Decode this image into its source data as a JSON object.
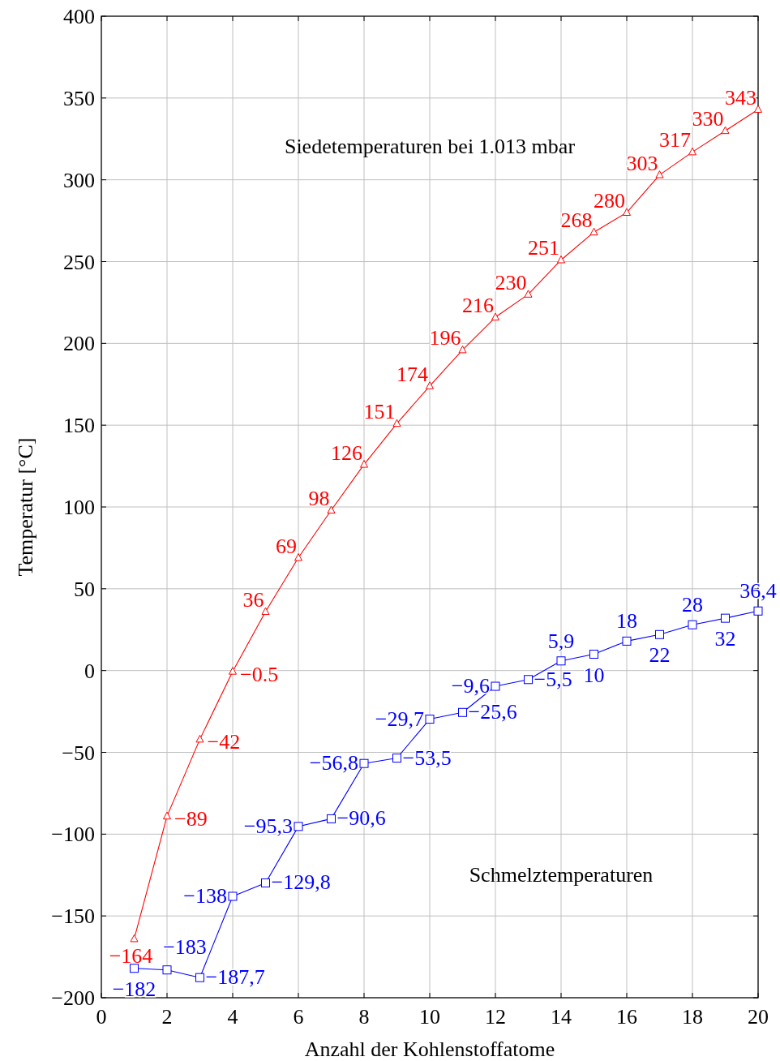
{
  "chart_data": {
    "type": "line",
    "xlabel": "Anzahl der Kohlenstoffatome",
    "ylabel": "Temperatur [°C]",
    "x": [
      1,
      2,
      3,
      4,
      5,
      6,
      7,
      8,
      9,
      10,
      11,
      12,
      13,
      14,
      15,
      16,
      17,
      18,
      19,
      20
    ],
    "xlim": [
      0,
      20
    ],
    "xticks": [
      0,
      2,
      4,
      6,
      8,
      10,
      12,
      14,
      16,
      18,
      20
    ],
    "ylim": [
      -200,
      400
    ],
    "yticks": [
      -200,
      -150,
      -100,
      -50,
      0,
      50,
      100,
      150,
      200,
      250,
      300,
      350,
      400
    ],
    "grid": true,
    "annotations": [
      "Siedetemperaturen bei 1.013 mbar",
      "Schmelztemperaturen"
    ],
    "series": [
      {
        "color": "#ff0000",
        "marker": "triangle",
        "values": [
          -164,
          -89,
          -42,
          -0.5,
          36,
          69,
          98,
          126,
          151,
          174,
          196,
          216,
          230,
          251,
          268,
          280,
          303,
          317,
          330,
          343
        ],
        "value_labels": [
          "−164",
          "−89",
          "−42",
          "−0.5",
          "36",
          "69",
          "98",
          "126",
          "151",
          "174",
          "196",
          "216",
          "230",
          "251",
          "268",
          "280",
          "303",
          "317",
          "330",
          "343"
        ]
      },
      {
        "color": "#0000ff",
        "marker": "square",
        "values": [
          -182,
          -183,
          -187.7,
          -138,
          -129.8,
          -95.3,
          -90.6,
          -56.8,
          -53.5,
          -29.7,
          -25.6,
          -9.6,
          -5.5,
          5.9,
          10,
          18,
          22,
          28,
          32,
          36.4
        ],
        "value_labels": [
          "−182",
          "−183",
          "−187,7",
          "−138",
          "−129,8",
          "−95,3",
          "−90,6",
          "−56,8",
          "−53,5",
          "−29,7",
          "−25,6",
          "−9,6",
          "−5,5",
          "5,9",
          "10",
          "18",
          "22",
          "28",
          "32",
          "36,4"
        ]
      }
    ]
  }
}
